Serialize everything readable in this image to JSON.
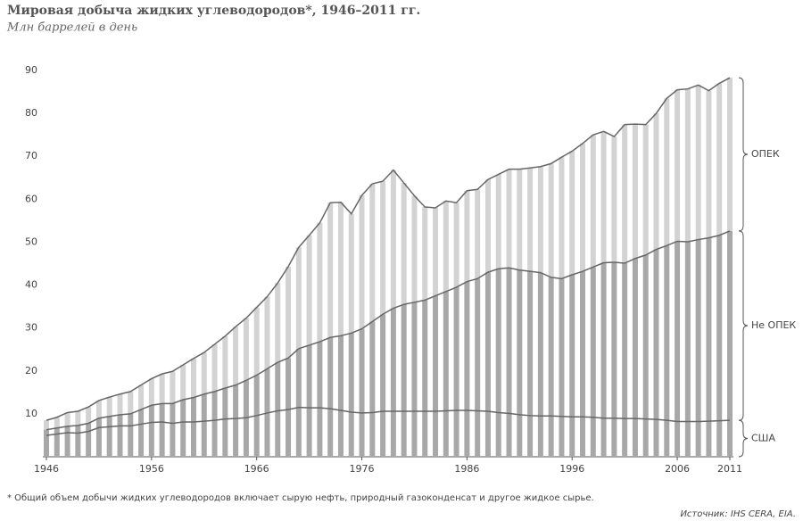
{
  "chart_data": {
    "type": "stacked-bar-line",
    "title": "Мировая добыча жидких углеводородов*, 1946–2011 гг.",
    "subtitle": "Млн баррелей в день",
    "footnote": "* Общий объем добычи жидких углеводородов включает сырую нефть, природный газоконденсат и другое жидкое сырье.",
    "source": "Источник: IHS CERA, EIA.",
    "categories": [
      "1946",
      null,
      null,
      null,
      null,
      null,
      null,
      null,
      null,
      null,
      "1956",
      null,
      null,
      null,
      null,
      null,
      null,
      null,
      null,
      null,
      "1966",
      null,
      null,
      null,
      null,
      null,
      null,
      null,
      null,
      null,
      "1976",
      null,
      null,
      null,
      null,
      null,
      null,
      null,
      null,
      null,
      "1986",
      null,
      null,
      null,
      null,
      null,
      null,
      null,
      null,
      null,
      "1996",
      null,
      null,
      null,
      null,
      null,
      null,
      null,
      null,
      null,
      "2006",
      null,
      null,
      null,
      null,
      "2011"
    ],
    "ylim": [
      0,
      90
    ],
    "yticks": [
      10,
      20,
      30,
      40,
      50,
      60,
      70,
      80,
      90
    ],
    "grid": false,
    "line_color": "#666666",
    "series": [
      {
        "name": "США",
        "color": "#a8a8a8",
        "values": [
          5.0,
          5.3,
          5.6,
          5.5,
          5.9,
          6.8,
          7.0,
          7.2,
          7.2,
          7.6,
          8.0,
          8.1,
          7.8,
          8.1,
          8.1,
          8.3,
          8.5,
          8.8,
          8.9,
          9.1,
          9.6,
          10.2,
          10.7,
          11.0,
          11.5,
          11.4,
          11.4,
          11.2,
          10.8,
          10.4,
          10.2,
          10.3,
          10.6,
          10.6,
          10.6,
          10.6,
          10.6,
          10.6,
          10.7,
          10.8,
          10.8,
          10.7,
          10.6,
          10.3,
          10.1,
          9.8,
          9.6,
          9.5,
          9.5,
          9.4,
          9.3,
          9.3,
          9.2,
          9.0,
          9.0,
          8.9,
          8.9,
          8.8,
          8.7,
          8.5,
          8.2,
          8.2,
          8.2,
          8.3,
          8.4,
          8.5
        ]
      },
      {
        "name": "Не ОПЕК",
        "color": "#a8a8a8",
        "values": [
          1.3,
          1.4,
          1.5,
          1.8,
          1.9,
          2.2,
          2.4,
          2.6,
          2.8,
          3.4,
          4.0,
          4.3,
          4.6,
          5.2,
          5.7,
          6.3,
          6.7,
          7.2,
          7.8,
          8.7,
          9.4,
          10.3,
          11.3,
          12.0,
          13.7,
          14.6,
          15.4,
          16.6,
          17.4,
          18.4,
          19.6,
          21.2,
          22.6,
          24.0,
          24.9,
          25.4,
          25.9,
          26.9,
          27.8,
          28.7,
          30.0,
          30.8,
          32.4,
          33.5,
          33.9,
          33.7,
          33.6,
          33.4,
          32.3,
          32.1,
          33.1,
          33.9,
          35.0,
          36.2,
          36.3,
          36.2,
          37.3,
          38.2,
          39.6,
          40.7,
          42.0,
          41.9,
          42.4,
          42.7,
          43.2,
          44.1
        ]
      },
      {
        "name": "ОПЕК",
        "color": "#d3d3d3",
        "values": [
          2.2,
          2.5,
          3.2,
          3.3,
          3.8,
          4.1,
          4.5,
          4.8,
          5.2,
          5.7,
          6.2,
          6.9,
          7.5,
          8.1,
          9.1,
          9.7,
          11.0,
          12.1,
          13.6,
          14.5,
          15.8,
          16.8,
          18.5,
          21.3,
          23.6,
          25.6,
          27.7,
          31.4,
          31.1,
          27.8,
          31.1,
          32.1,
          31.0,
          32.2,
          28.3,
          24.8,
          21.7,
          20.5,
          21.1,
          19.7,
          21.2,
          20.8,
          21.6,
          22.0,
          23.0,
          23.5,
          24.1,
          24.7,
          26.5,
          28.3,
          28.8,
          29.8,
          30.8,
          30.6,
          29.3,
          32.3,
          31.3,
          30.4,
          31.7,
          34.3,
          35.3,
          35.6,
          36.0,
          34.3,
          35.4,
          35.7
        ]
      }
    ]
  }
}
